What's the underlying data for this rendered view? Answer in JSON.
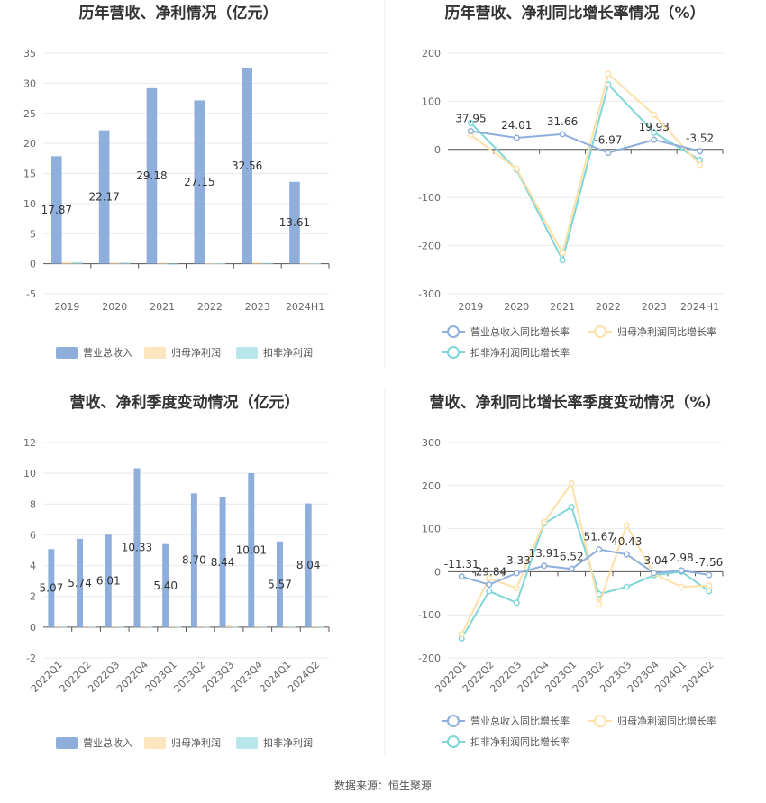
{
  "source_text": "数据来源：恒生聚源",
  "chart_data": [
    {
      "type": "bar",
      "title": "历年营收、净利情况（亿元）",
      "categories": [
        "2019",
        "2020",
        "2021",
        "2022",
        "2023",
        "2024H1"
      ],
      "ylim": [
        -5,
        35
      ],
      "yticks": [
        -5,
        0,
        5,
        10,
        15,
        20,
        25,
        30,
        35
      ],
      "series": [
        {
          "name": "营业总收入",
          "color": "#8eaedc",
          "values": [
            17.87,
            22.17,
            29.18,
            27.15,
            32.56,
            13.61
          ],
          "labels": [
            "17.87",
            "22.17",
            "29.18",
            "27.15",
            "32.56",
            "13.61"
          ]
        },
        {
          "name": "归母净利润",
          "color": "#fde5bd",
          "values": [
            0.3,
            0.2,
            0.15,
            0.1,
            0.2,
            0.1
          ]
        },
        {
          "name": "扣非净利润",
          "color": "#b9e6ea",
          "values": [
            0.3,
            0.2,
            -0.2,
            0.1,
            0.15,
            0.05
          ]
        }
      ],
      "legend": "bottom"
    },
    {
      "type": "line",
      "title": "历年营收、净利同比增长率情况（%）",
      "categories": [
        "2019",
        "2020",
        "2021",
        "2022",
        "2023",
        "2024H1"
      ],
      "ylim": [
        -300,
        200
      ],
      "yticks": [
        -300,
        -200,
        -100,
        0,
        100,
        200
      ],
      "series": [
        {
          "name": "营业总收入同比增长率",
          "color": "#8eaedc",
          "values": [
            37.95,
            24.01,
            31.66,
            -6.97,
            19.93,
            -3.52
          ],
          "labels": [
            "37.95",
            "24.01",
            "31.66",
            "-6.97",
            "19.93",
            "-3.52"
          ]
        },
        {
          "name": "归母净利润同比增长率",
          "color": "#fde0a8",
          "values": [
            30,
            -40,
            -215,
            157,
            72,
            -32
          ]
        },
        {
          "name": "扣非净利润同比增长率",
          "color": "#7fd6d6",
          "values": [
            55,
            -42,
            -230,
            135,
            35,
            -22
          ]
        }
      ],
      "legend": "bottom"
    },
    {
      "type": "bar",
      "title": "营收、净利季度变动情况（亿元）",
      "categories": [
        "2022Q1",
        "2022Q2",
        "2022Q3",
        "2022Q4",
        "2023Q1",
        "2023Q2",
        "2023Q3",
        "2023Q4",
        "2024Q1",
        "2024Q2"
      ],
      "ylim": [
        -2,
        12
      ],
      "yticks": [
        -2,
        0,
        2,
        4,
        6,
        8,
        10,
        12
      ],
      "series": [
        {
          "name": "营业总收入",
          "color": "#8eaedc",
          "values": [
            5.07,
            5.74,
            6.01,
            10.33,
            5.4,
            8.7,
            8.44,
            10.01,
            5.57,
            8.04
          ],
          "labels": [
            "5.07",
            "5.74",
            "6.01",
            "10.33",
            "5.40",
            "8.70",
            "8.44",
            "10.01",
            "5.57",
            "8.04"
          ]
        },
        {
          "name": "归母净利润",
          "color": "#fde5bd",
          "values": [
            0.05,
            0.05,
            0.05,
            0.05,
            0.05,
            0.05,
            0.12,
            0.05,
            0.05,
            0.05
          ]
        },
        {
          "name": "扣非净利润",
          "color": "#b9e6ea",
          "values": [
            0.03,
            0.03,
            0.03,
            0.03,
            0.03,
            0.03,
            0.03,
            0.03,
            0.03,
            0.03
          ]
        }
      ],
      "legend": "bottom"
    },
    {
      "type": "line",
      "title": "营收、净利同比增长率季度变动情况（%）",
      "categories": [
        "2022Q1",
        "2022Q2",
        "2022Q3",
        "2022Q4",
        "2023Q1",
        "2023Q2",
        "2023Q3",
        "2023Q4",
        "2024Q1",
        "2024Q2"
      ],
      "ylim": [
        -200,
        300
      ],
      "yticks": [
        -200,
        -100,
        0,
        100,
        200,
        300
      ],
      "series": [
        {
          "name": "营业总收入同比增长率",
          "color": "#8eaedc",
          "values": [
            -11.31,
            -29.84,
            -3.33,
            13.91,
            6.52,
            51.67,
            40.43,
            -3.04,
            2.98,
            -7.56
          ],
          "labels": [
            "-11.31",
            "-29.84",
            "-3.33",
            "13.91",
            "6.52",
            "51.67",
            "40.43",
            "-3.04",
            "2.98",
            "-7.56"
          ]
        },
        {
          "name": "归母净利润同比增长率",
          "color": "#fde0a8",
          "values": [
            -145,
            -15,
            -38,
            115,
            205,
            -75,
            108,
            -5,
            -35,
            -32
          ]
        },
        {
          "name": "扣非净利润同比增长率",
          "color": "#7fd6d6",
          "values": [
            -155,
            -45,
            -72,
            112,
            150,
            -52,
            -35,
            -8,
            0,
            -45
          ]
        }
      ],
      "legend": "bottom"
    }
  ]
}
